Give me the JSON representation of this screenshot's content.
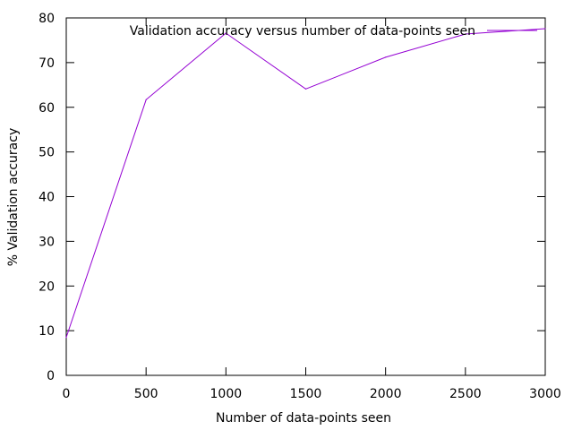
{
  "chart_data": {
    "type": "line",
    "title": "",
    "xlabel": "Number of data-points seen",
    "ylabel": "% Validation accuracy",
    "xlim": [
      0,
      3000
    ],
    "ylim": [
      0,
      80
    ],
    "x_ticks": [
      0,
      500,
      1000,
      1500,
      2000,
      2500,
      3000
    ],
    "y_ticks": [
      0,
      10,
      20,
      30,
      40,
      50,
      60,
      70,
      80
    ],
    "x_tick_labels": [
      "0",
      "500",
      "1000",
      "1500",
      "2000",
      "2500",
      "3000"
    ],
    "y_tick_labels": [
      "0",
      "10",
      "20",
      "30",
      "40",
      "50",
      "60",
      "70",
      "80"
    ],
    "grid": false,
    "legend_position": "top-right",
    "series": [
      {
        "name": "Validation accuracy versus number of data-points seen",
        "color": "#9400d3",
        "x": [
          0,
          500,
          1000,
          1500,
          2000,
          2500,
          3000
        ],
        "y": [
          8.5,
          61.7,
          76.6,
          64.1,
          71.2,
          76.4,
          77.6
        ]
      }
    ]
  }
}
